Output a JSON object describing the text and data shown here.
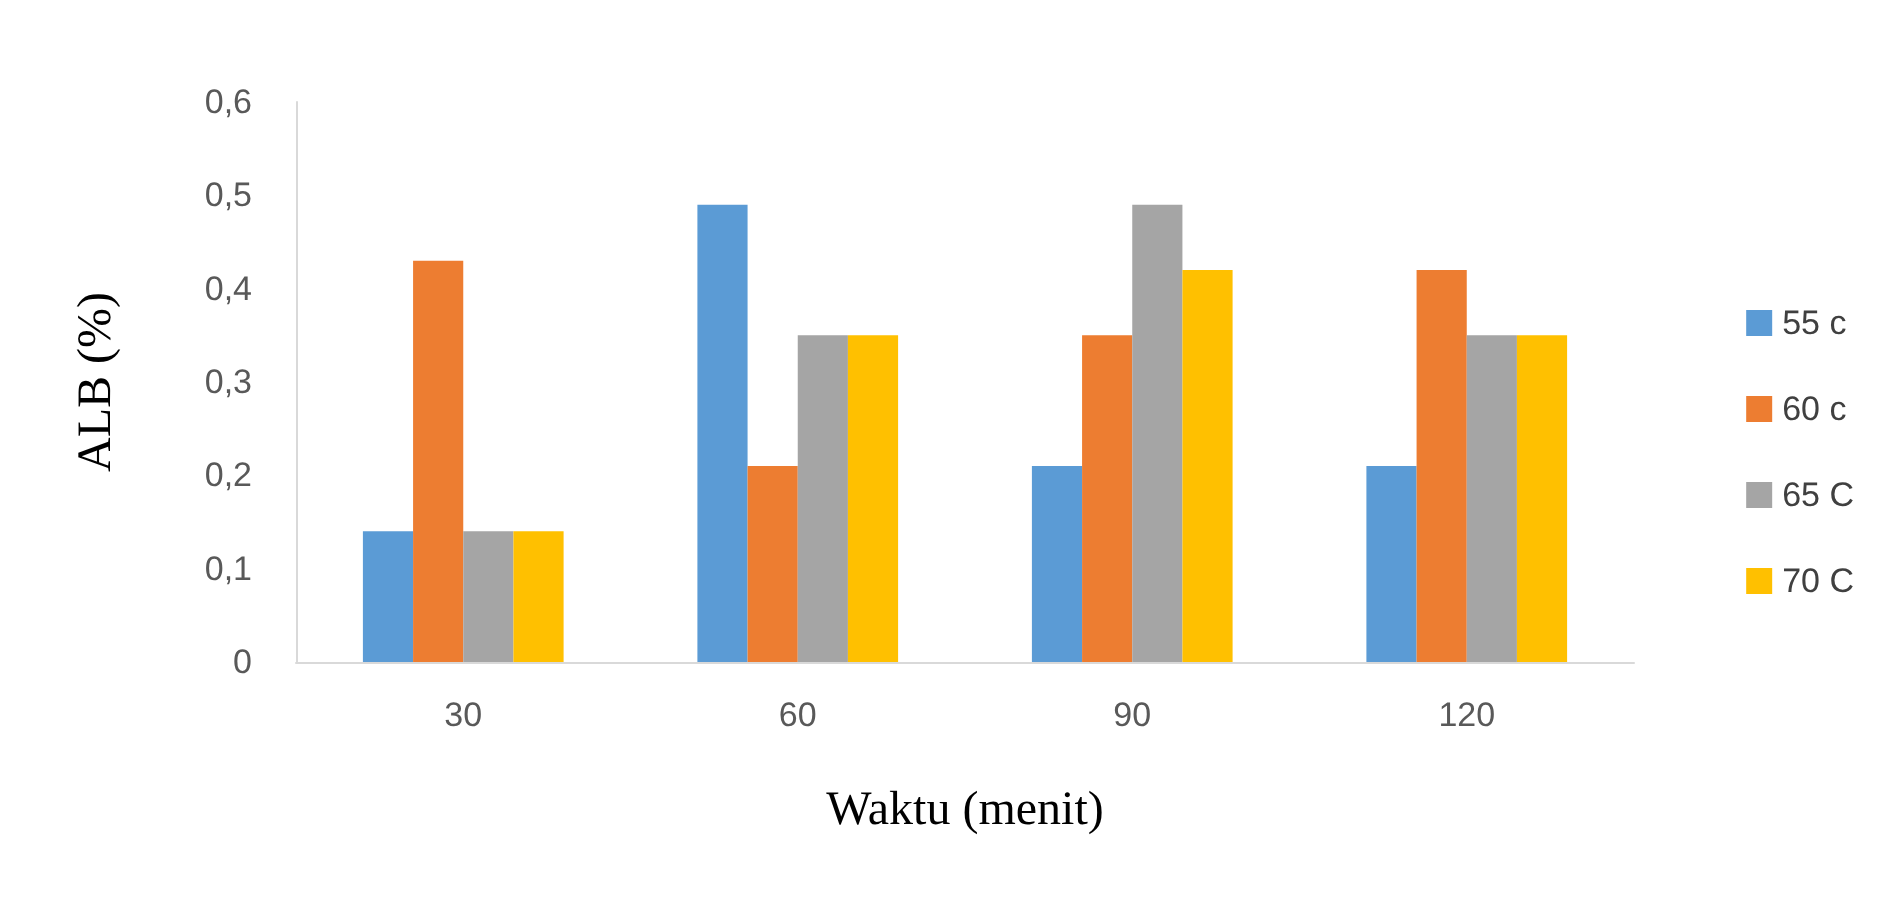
{
  "chart_data": {
    "type": "bar",
    "xlabel": "Waktu (menit)",
    "ylabel": "ALB (%)",
    "categories": [
      "30",
      "60",
      "90",
      "120"
    ],
    "series": [
      {
        "name": "55 c",
        "color": "#5b9bd5",
        "values": [
          0.14,
          0.49,
          0.21,
          0.21
        ]
      },
      {
        "name": "60 c",
        "color": "#ed7d31",
        "values": [
          0.43,
          0.21,
          0.35,
          0.42
        ]
      },
      {
        "name": "65 C",
        "color": "#a5a5a5",
        "values": [
          0.14,
          0.35,
          0.49,
          0.35
        ]
      },
      {
        "name": "70 C",
        "color": "#ffc000",
        "values": [
          0.14,
          0.35,
          0.42,
          0.35
        ]
      }
    ],
    "ylim": [
      0,
      0.6
    ],
    "yticks": [
      0,
      {
        "value": 0.1,
        "label": "0,1"
      },
      {
        "value": 0.2,
        "label": "0,2"
      },
      {
        "value": 0.3,
        "label": "0,3"
      },
      {
        "value": 0.4,
        "label": "0,4"
      },
      {
        "value": 0.5,
        "label": "0,5"
      },
      {
        "value": 0.6,
        "label": "0,6"
      }
    ],
    "grid": false,
    "legend": "right"
  }
}
